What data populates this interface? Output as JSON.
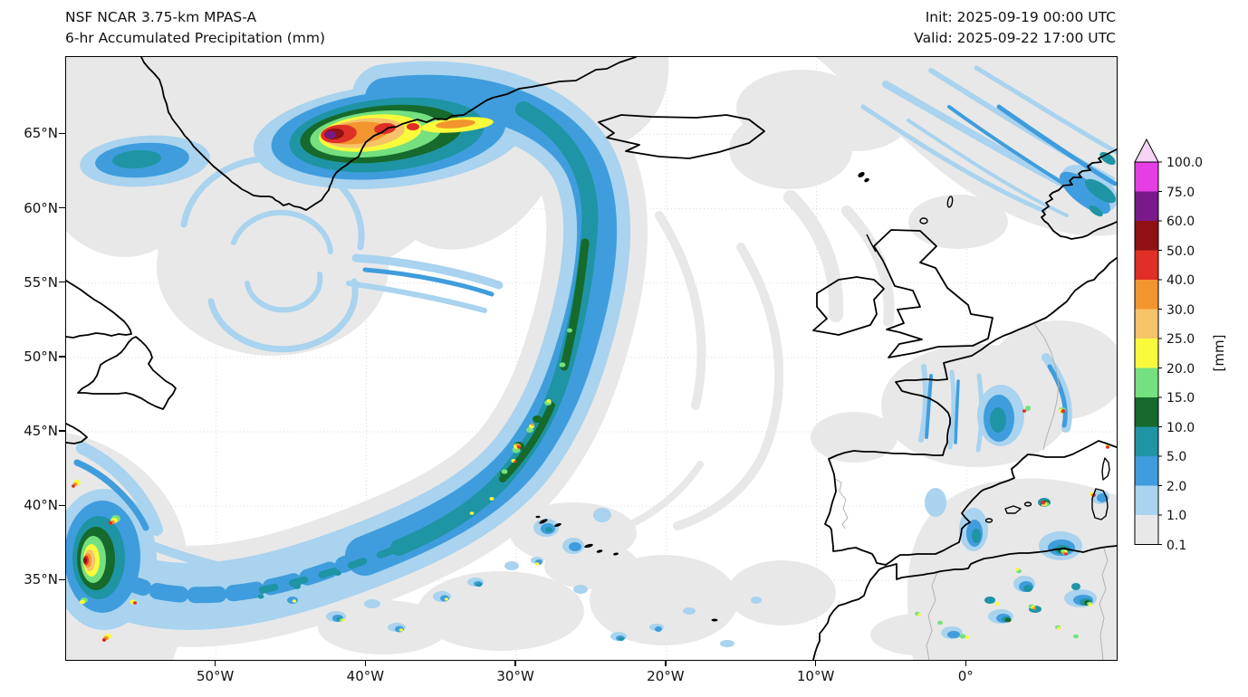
{
  "header": {
    "title_line1": "NSF NCAR 3.75-km MPAS-A",
    "title_line2": "6-hr Accumulated Precipitation (mm)",
    "init_label": "Init: 2025-09-19 00:00 UTC",
    "valid_label": "Valid: 2025-09-22 17:00 UTC"
  },
  "axes": {
    "lat_ticks": [
      "65°N",
      "60°N",
      "55°N",
      "50°N",
      "45°N",
      "40°N",
      "35°N"
    ],
    "lon_ticks": [
      "50°W",
      "40°W",
      "30°W",
      "20°W",
      "10°W",
      "0°"
    ]
  },
  "colorbar": {
    "unit_label": "[mm]",
    "tick_labels_top_to_bottom": [
      "100.0",
      "75.0",
      "60.0",
      "50.0",
      "40.0",
      "30.0",
      "25.0",
      "20.0",
      "15.0",
      "10.0",
      "5.0",
      "2.0",
      "1.0",
      "0.1"
    ],
    "overflow_color": "#f5d4f5",
    "segments_bottom_to_top": [
      {
        "min": 0.1,
        "max": 1.0,
        "color": "#e8e8e8"
      },
      {
        "min": 1.0,
        "max": 2.0,
        "color": "#a9d3ee"
      },
      {
        "min": 2.0,
        "max": 5.0,
        "color": "#3f9ddd"
      },
      {
        "min": 5.0,
        "max": 10.0,
        "color": "#1f94a4"
      },
      {
        "min": 10.0,
        "max": 15.0,
        "color": "#156a2c"
      },
      {
        "min": 15.0,
        "max": 20.0,
        "color": "#74e080"
      },
      {
        "min": 20.0,
        "max": 25.0,
        "color": "#fafa3c"
      },
      {
        "min": 25.0,
        "max": 30.0,
        "color": "#f6c369"
      },
      {
        "min": 30.0,
        "max": 40.0,
        "color": "#f2952e"
      },
      {
        "min": 40.0,
        "max": 50.0,
        "color": "#df2f26"
      },
      {
        "min": 50.0,
        "max": 60.0,
        "color": "#8f1114"
      },
      {
        "min": 60.0,
        "max": 75.0,
        "color": "#7a1a8a"
      },
      {
        "min": 75.0,
        "max": 100.0,
        "color": "#e43ee4"
      }
    ]
  },
  "chart_data": {
    "type": "heatmap",
    "title": "NSF NCAR 3.75-km MPAS-A — 6-hr Accumulated Precipitation",
    "units": "mm",
    "init_time": "2025-09-19 00:00 UTC",
    "valid_time": "2025-09-22 17:00 UTC",
    "map_extent": {
      "lon_min": -60,
      "lon_max": 10,
      "lat_min": 30,
      "lat_max": 70
    },
    "x_ticks_lon_deg": [
      -50,
      -40,
      -30,
      -20,
      -10,
      0
    ],
    "y_ticks_lat_deg": [
      35,
      40,
      45,
      50,
      55,
      60,
      65
    ],
    "contour_levels_mm": [
      0.1,
      1,
      2,
      5,
      10,
      15,
      20,
      25,
      30,
      40,
      50,
      60,
      75,
      100
    ],
    "legend_position": "right vertical colorbar with overflow arrow above 100 mm",
    "grid": "faint dotted lat-lon graticule every 5 deg lat / 10 deg lon",
    "features": [
      {
        "name": "intense orographic precipitation maximum on SE Greenland coast",
        "approx_lat": 65,
        "approx_lon": -40,
        "peak_mm": "75-100+",
        "note": "elongated E-W multi-core band ~63-66N 32-45W, cores 40-75 mm, yellow-orange tail extending ENE"
      },
      {
        "name": "long frontal precipitation band",
        "path": "from SE Greenland (~66N 33W) arcing south along 26-30W down to ~35N then curving SW",
        "typical_mm": "2-10",
        "embedded_cells_mm": "10-30 with isolated 40-50"
      },
      {
        "name": "occluded cyclone spiral of light precipitation",
        "approx_lat": 57,
        "approx_lon": -46,
        "typical_mm": "0.1-2"
      },
      {
        "name": "strong convective cluster at western edge",
        "approx_lat": 36,
        "approx_lon": -58,
        "peak_mm": "40-60"
      },
      {
        "name": "streaky warm-frontal band over Norwegian Sea toward Norway",
        "approx": "58-69N, 5W-10E",
        "typical_mm": "1-10"
      },
      {
        "name": "patch of 2-10 mm west of Cape Farewell",
        "approx_lat": 63,
        "approx_lon": -55,
        "peak_mm": "5-10"
      },
      {
        "name": "showers over Bay of Biscay and western France",
        "approx": "44-49N, 0-6W",
        "typical_mm": "2-10",
        "peak_mm": "isolated 40-50"
      },
      {
        "name": "scattered convection in western Mediterranean (E Spain, Balearics, Corsica-Sardinia, Algeria coast)",
        "typical_mm": "2-25",
        "peak_mm": "isolated 40-50"
      },
      {
        "name": "subtropical line of small maritime showers near 33-38N between 55W and 20W (Azores region)",
        "typical_mm": "1-10",
        "peak_mm": "isolated 20-30"
      },
      {
        "name": "widespread stratiform / drizzle areas",
        "typical_mm": "0.1-1"
      }
    ]
  }
}
